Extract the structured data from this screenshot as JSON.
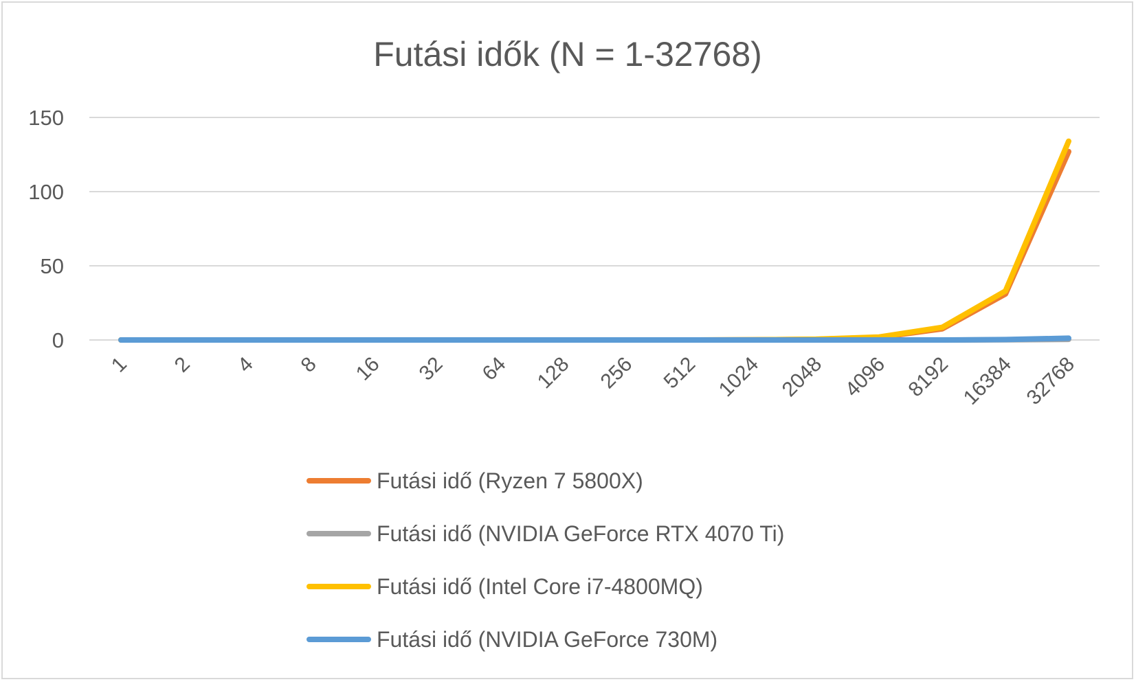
{
  "chart_data": {
    "type": "line",
    "title": "Futási idők (N = 1-32768)",
    "xlabel": "",
    "ylabel": "",
    "categories": [
      "1",
      "2",
      "4",
      "8",
      "16",
      "32",
      "64",
      "128",
      "256",
      "512",
      "1024",
      "2048",
      "4096",
      "8192",
      "16384",
      "32768"
    ],
    "ylim": [
      0,
      150
    ],
    "yticks": [
      0,
      50,
      100,
      150
    ],
    "grid": true,
    "legend_position": "bottom",
    "series": [
      {
        "name": "Futási idő (Ryzen 7 5800X)",
        "color": "#ed7d31",
        "values": [
          0,
          0,
          0,
          0,
          0,
          0,
          0,
          0,
          0,
          0,
          0.1,
          0.4,
          1.8,
          7.5,
          31,
          127
        ]
      },
      {
        "name": "Futási idő (NVIDIA GeForce RTX 4070 Ti)",
        "color": "#a5a5a5",
        "values": [
          0,
          0,
          0,
          0,
          0,
          0,
          0,
          0,
          0,
          0,
          0,
          0,
          0,
          0,
          0.1,
          0.4
        ]
      },
      {
        "name": "Futási idő (Intel Core i7-4800MQ)",
        "color": "#ffc000",
        "values": [
          0,
          0,
          0,
          0,
          0,
          0,
          0,
          0,
          0,
          0,
          0.1,
          0.5,
          2,
          8.5,
          33,
          134
        ]
      },
      {
        "name": "Futási idő (NVIDIA GeForce 730M)",
        "color": "#5b9bd5",
        "values": [
          0,
          0,
          0,
          0,
          0,
          0,
          0,
          0,
          0,
          0,
          0,
          0,
          0,
          0,
          0.3,
          1.2
        ]
      }
    ]
  }
}
